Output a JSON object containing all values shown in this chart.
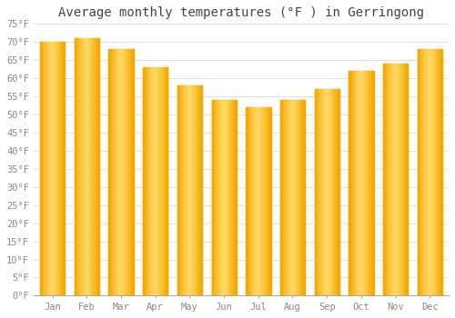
{
  "title": "Average monthly temperatures (°F ) in Gerringong",
  "months": [
    "Jan",
    "Feb",
    "Mar",
    "Apr",
    "May",
    "Jun",
    "Jul",
    "Aug",
    "Sep",
    "Oct",
    "Nov",
    "Dec"
  ],
  "values": [
    70,
    71,
    68,
    63,
    58,
    54,
    52,
    54,
    57,
    62,
    64,
    68
  ],
  "bar_color_dark": "#F5A800",
  "bar_color_light": "#FFD966",
  "background_color": "#FFFFFF",
  "grid_color": "#DDDDDD",
  "ylim": [
    0,
    75
  ],
  "yticks": [
    0,
    5,
    10,
    15,
    20,
    25,
    30,
    35,
    40,
    45,
    50,
    55,
    60,
    65,
    70,
    75
  ],
  "ylabel_format": "°F",
  "title_fontsize": 10,
  "tick_fontsize": 7.5,
  "font_family": "monospace"
}
